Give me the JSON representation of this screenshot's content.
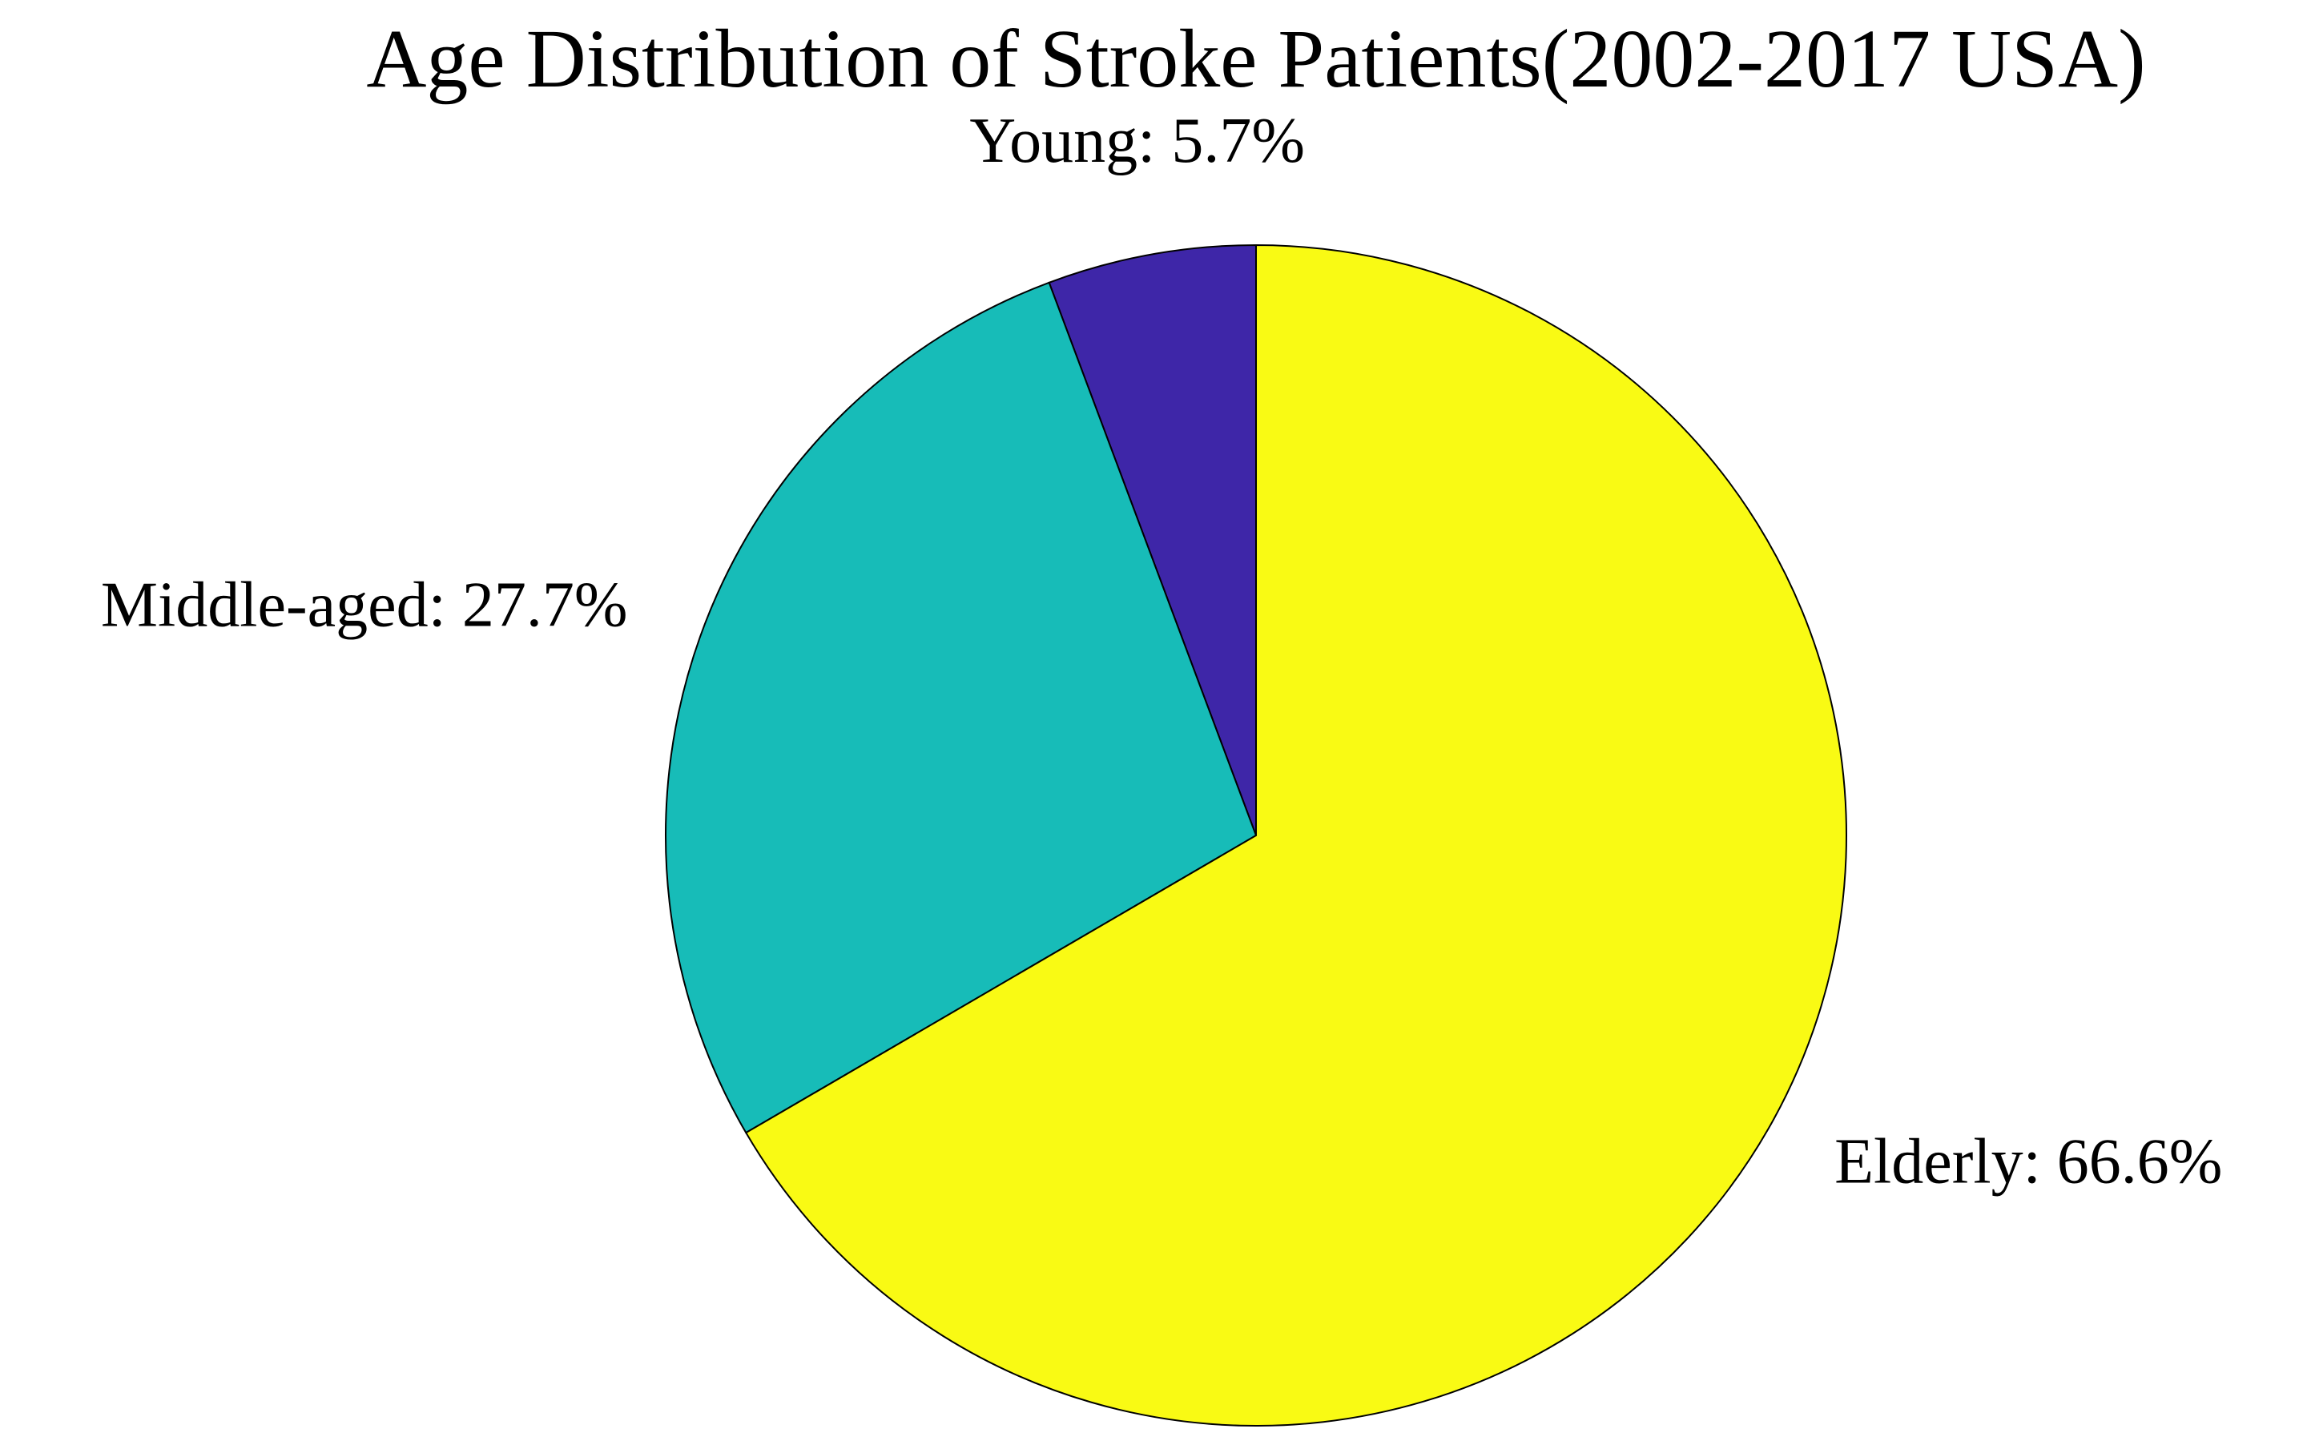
{
  "chart_data": {
    "type": "pie",
    "title": "Age Distribution of Stroke Patients(2002-2017 USA)",
    "values": [
      5.7,
      27.7,
      66.6
    ],
    "value_labels": [
      "Young: 5.7%",
      "Middle-aged: 27.7%",
      "Elderly: 66.6%"
    ],
    "colors": [
      "#3e26a8",
      "#17bcb8",
      "#f9fa14"
    ],
    "direction": "counterclockwise"
  }
}
